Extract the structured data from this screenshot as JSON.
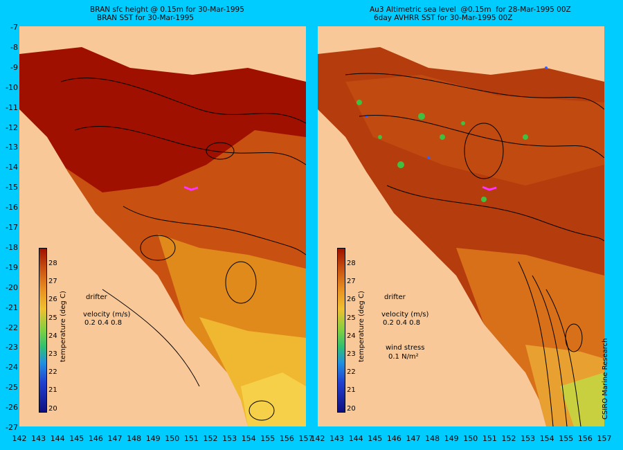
{
  "left_panel": {
    "title_line1": "BRAN sfc height @ 0.15m for 30-Mar-1995",
    "title_line2": "BRAN SST for 30-Mar-1995"
  },
  "right_panel": {
    "title_line1": "Au3 Altimetric sea level  @0.15m  for 28-Mar-1995 00Z",
    "title_line2": "6day AVHRR SST for 30-Mar-1995 00Z",
    "wind_stress_label": "wind stress",
    "wind_stress_value": "0.1 N/m²",
    "credit": "CSIRO Marine Research"
  },
  "legend": {
    "drifter_label": "drifter",
    "velocity_label": "velocity (m/s)",
    "velocity_scale": "0.2 0.4 0.8",
    "colorbar_title": "temperature (deg C)",
    "colorbar_ticks": [
      "28",
      "27",
      "26",
      "25",
      "24",
      "23",
      "22",
      "21",
      "20"
    ]
  },
  "axes": {
    "y_ticks": [
      "-7",
      "-8",
      "-9",
      "-10",
      "-11",
      "-12",
      "-13",
      "-14",
      "-15",
      "-16",
      "-17",
      "-18",
      "-19",
      "-20",
      "-21",
      "-22",
      "-23",
      "-24",
      "-25",
      "-26",
      "-27"
    ],
    "x_ticks_left": [
      "142",
      "143",
      "144",
      "145",
      "146",
      "147",
      "148",
      "149",
      "150",
      "151",
      "152",
      "153",
      "154",
      "155",
      "156",
      "157"
    ],
    "x_ticks_right": [
      "142",
      "143",
      "144",
      "145",
      "146",
      "147",
      "148",
      "149",
      "150",
      "151",
      "152",
      "153",
      "154",
      "155",
      "156",
      "157"
    ]
  },
  "colors": {
    "background": "#00ccff",
    "land": "#f9c898",
    "sst_28": "#a01000",
    "sst_27": "#c85010",
    "sst_26": "#e89020",
    "sst_25": "#f0c030",
    "drifter": "#ff33ff"
  }
}
